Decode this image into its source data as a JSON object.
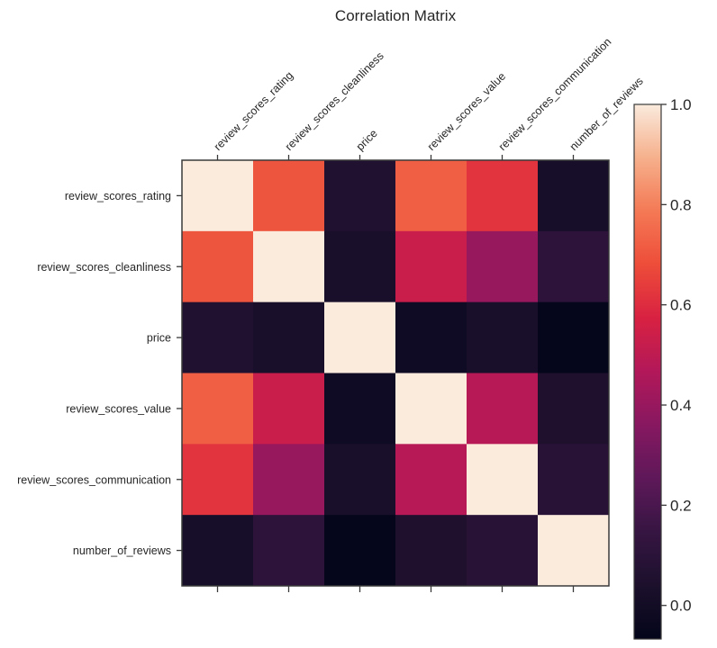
{
  "chart_data": {
    "type": "heatmap",
    "title": "Correlation Matrix",
    "xlabel": "",
    "ylabel": "",
    "variables": [
      "review_scores_rating",
      "review_scores_cleanliness",
      "price",
      "review_scores_value",
      "review_scores_communication",
      "number_of_reviews"
    ],
    "matrix": [
      [
        1.0,
        0.7,
        0.06,
        0.72,
        0.62,
        0.02
      ],
      [
        0.7,
        1.0,
        0.03,
        0.53,
        0.4,
        0.11
      ],
      [
        0.06,
        0.03,
        1.0,
        -0.01,
        0.03,
        -0.06
      ],
      [
        0.72,
        0.53,
        -0.01,
        1.0,
        0.48,
        0.05
      ],
      [
        0.62,
        0.4,
        0.03,
        0.48,
        1.0,
        0.09
      ],
      [
        0.02,
        0.11,
        -0.06,
        0.05,
        0.09,
        1.0
      ]
    ],
    "colormap": "rocket",
    "colorbar": {
      "range": [
        -0.067,
        1.0
      ],
      "ticks": [
        0.0,
        0.2,
        0.4,
        0.6,
        0.8,
        1.0
      ],
      "tick_labels": [
        "0.0",
        "0.2",
        "0.4",
        "0.6",
        "0.8",
        "1.0"
      ],
      "placement": "right"
    },
    "x_tick_position": "top",
    "grid": false
  }
}
